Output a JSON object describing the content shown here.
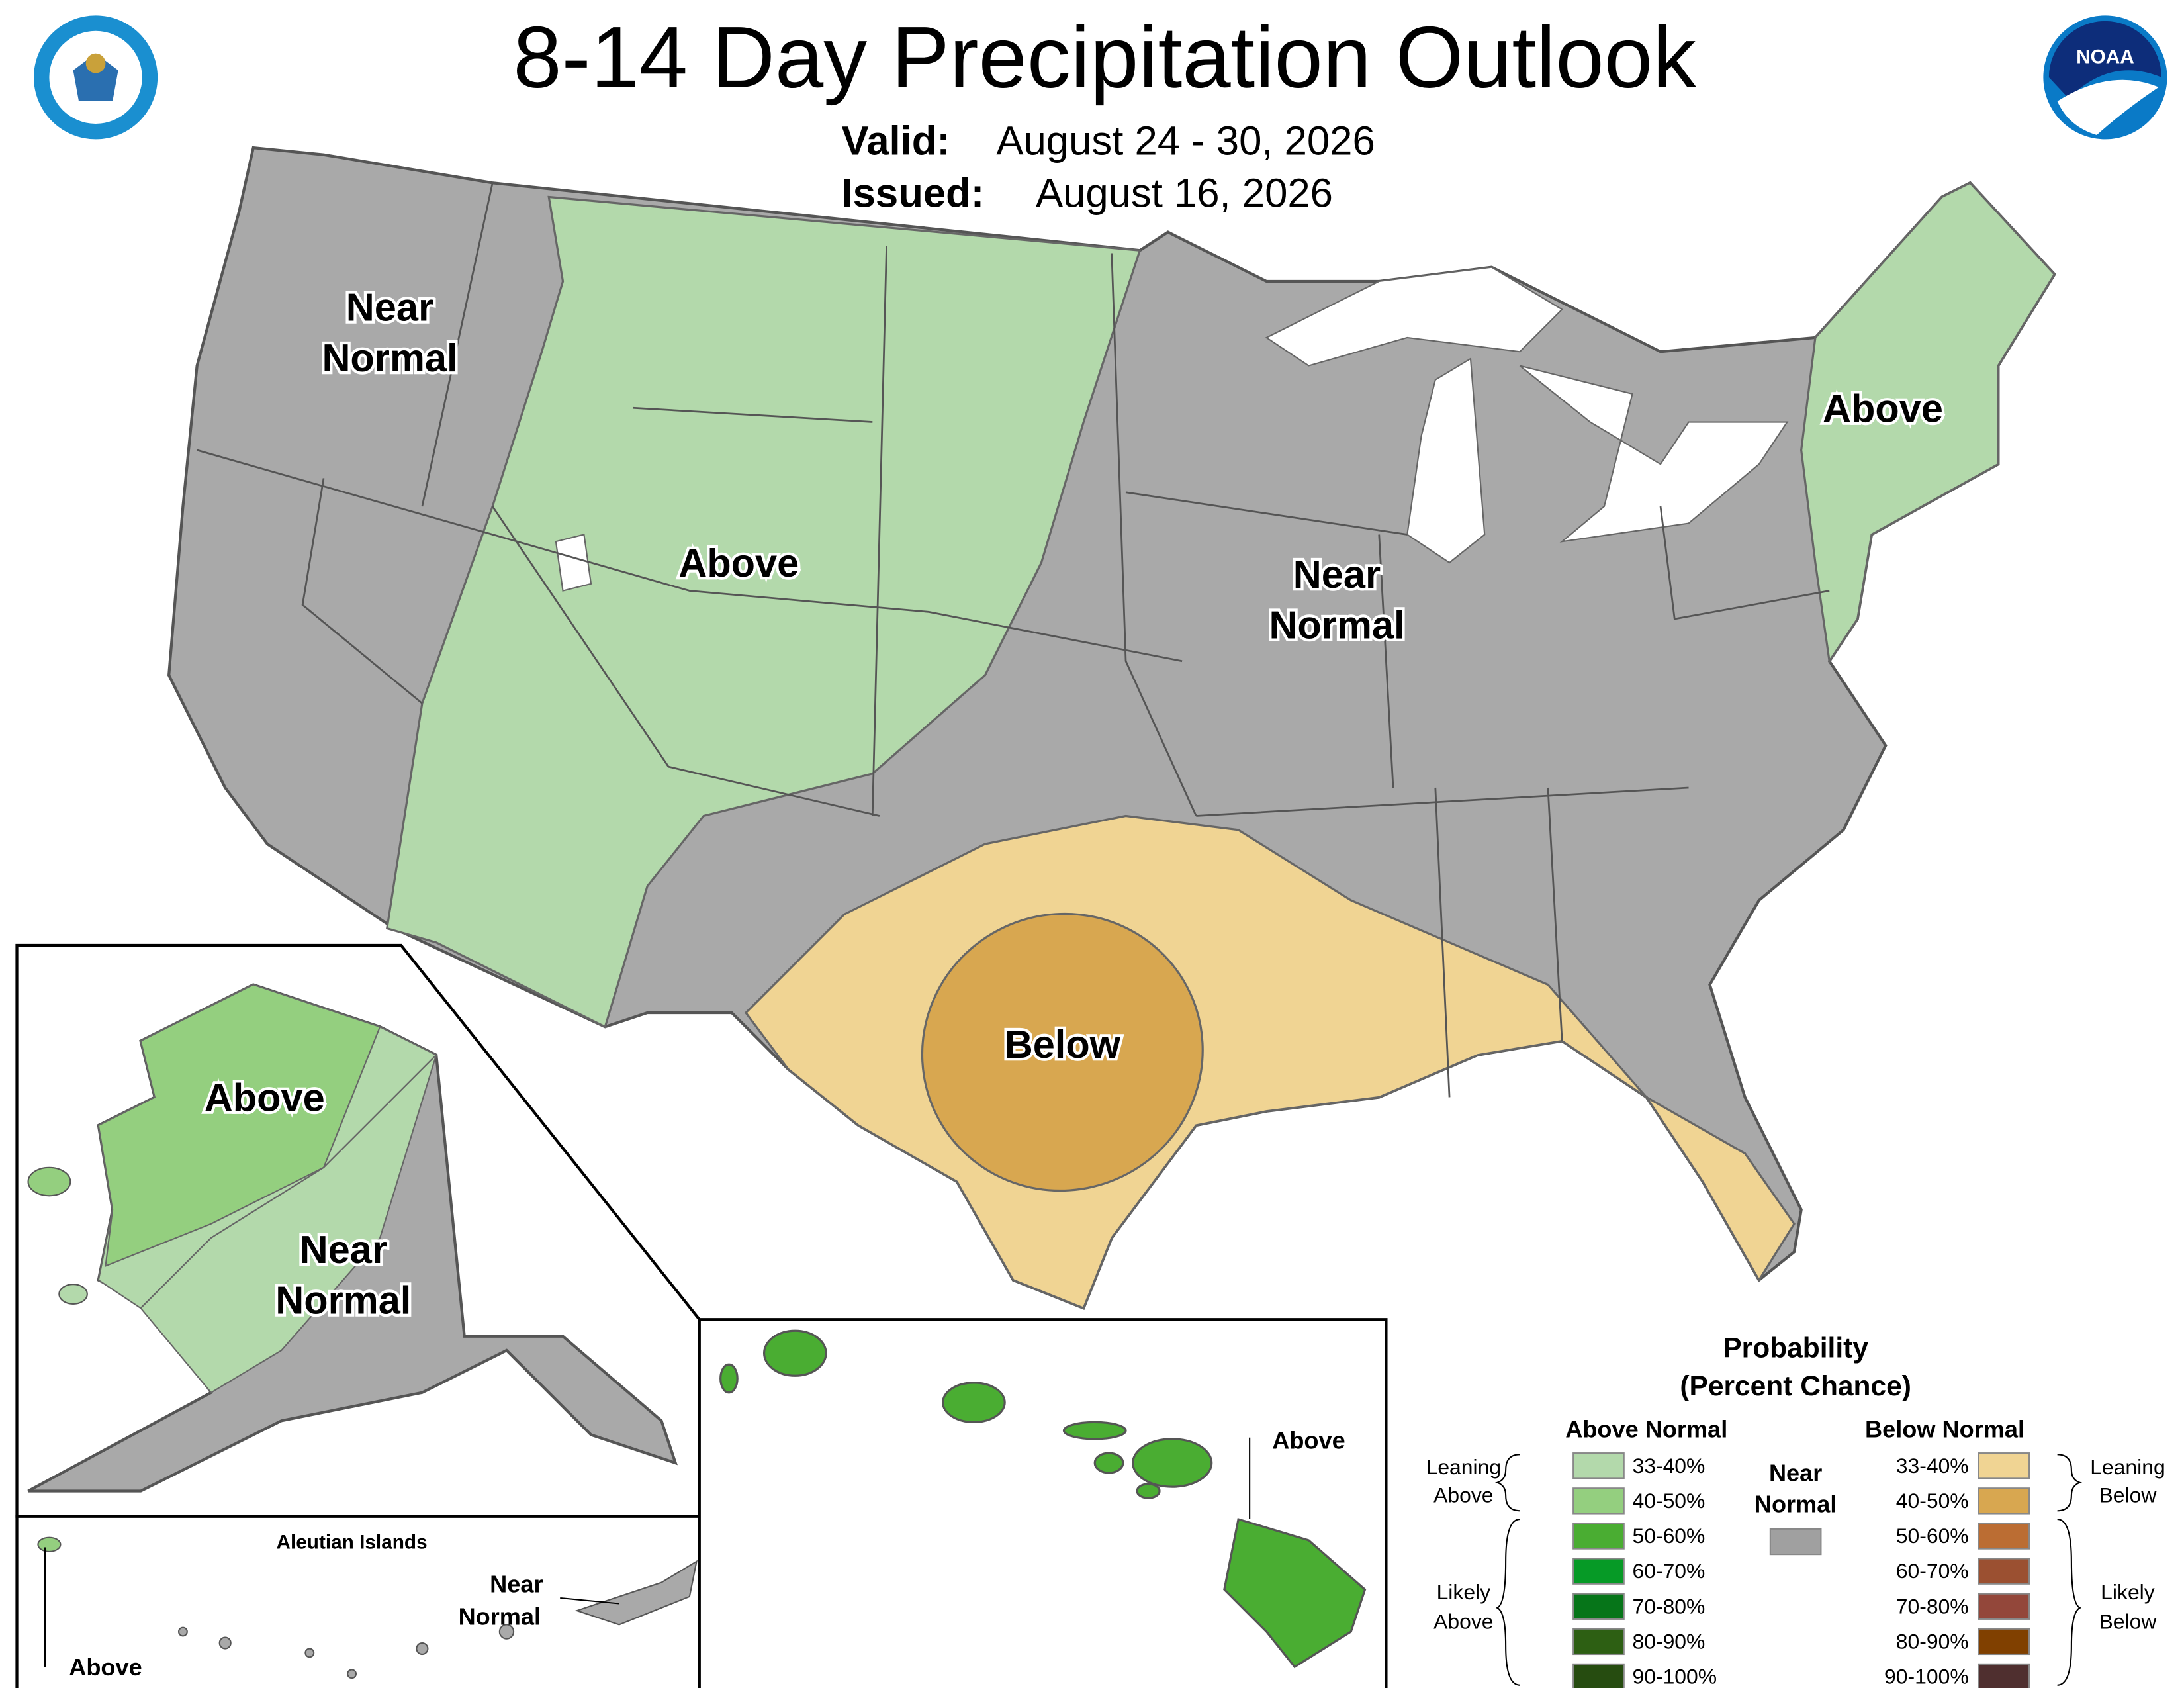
{
  "header": {
    "title": "8-14 Day Precipitation Outlook",
    "valid_label": "Valid:",
    "valid": "August 24 - 30, 2026",
    "issued_label": "Issued:",
    "issued": "August 16, 2026"
  },
  "conus_labels": [
    {
      "lines": [
        "Near",
        "Normal"
      ]
    },
    {
      "lines": [
        "Above"
      ]
    },
    {
      "lines": [
        "Near",
        "Normal"
      ]
    },
    {
      "lines": [
        "Above"
      ]
    },
    {
      "lines": [
        "Below"
      ]
    }
  ],
  "alaska": {
    "labels": [
      {
        "lines": [
          "Above"
        ]
      },
      {
        "lines": [
          "Near",
          "Normal"
        ]
      }
    ]
  },
  "aleutian": {
    "title": "Aleutian Islands",
    "labels": [
      {
        "lines": [
          "Near",
          "Normal"
        ]
      },
      {
        "lines": [
          "Above"
        ]
      }
    ]
  },
  "hawaii": {
    "labels": [
      {
        "lines": [
          "Above"
        ]
      }
    ]
  },
  "legend": {
    "title": [
      "Probability",
      "(Percent Chance)"
    ],
    "above_header": "Above Normal",
    "below_header": "Below Normal",
    "near": {
      "lines": [
        "Near",
        "Normal"
      ],
      "color": "#a0a0a0"
    },
    "above_items": [
      {
        "label": "33-40%",
        "color": "#b3d9ab"
      },
      {
        "label": "40-50%",
        "color": "#94cf7f"
      },
      {
        "label": "50-60%",
        "color": "#4aad32"
      },
      {
        "label": "60-70%",
        "color": "#069a26"
      },
      {
        "label": "70-80%",
        "color": "#067519"
      },
      {
        "label": "80-90%",
        "color": "#2d5f13"
      },
      {
        "label": "90-100%",
        "color": "#264c10"
      }
    ],
    "below_items": [
      {
        "label": "33-40%",
        "color": "#f0d493"
      },
      {
        "label": "40-50%",
        "color": "#d8a750"
      },
      {
        "label": "50-60%",
        "color": "#bb6d33"
      },
      {
        "label": "60-70%",
        "color": "#9b5031"
      },
      {
        "label": "70-80%",
        "color": "#93473a"
      },
      {
        "label": "80-90%",
        "color": "#804000"
      },
      {
        "label": "90-100%",
        "color": "#4f2f2f"
      }
    ],
    "above_groups": [
      {
        "lines": [
          "Leaning",
          "Above"
        ]
      },
      {
        "lines": [
          "Likely",
          "Above"
        ]
      }
    ],
    "below_groups": [
      {
        "lines": [
          "Leaning",
          "Below"
        ]
      },
      {
        "lines": [
          "Likely",
          "Below"
        ]
      }
    ]
  }
}
